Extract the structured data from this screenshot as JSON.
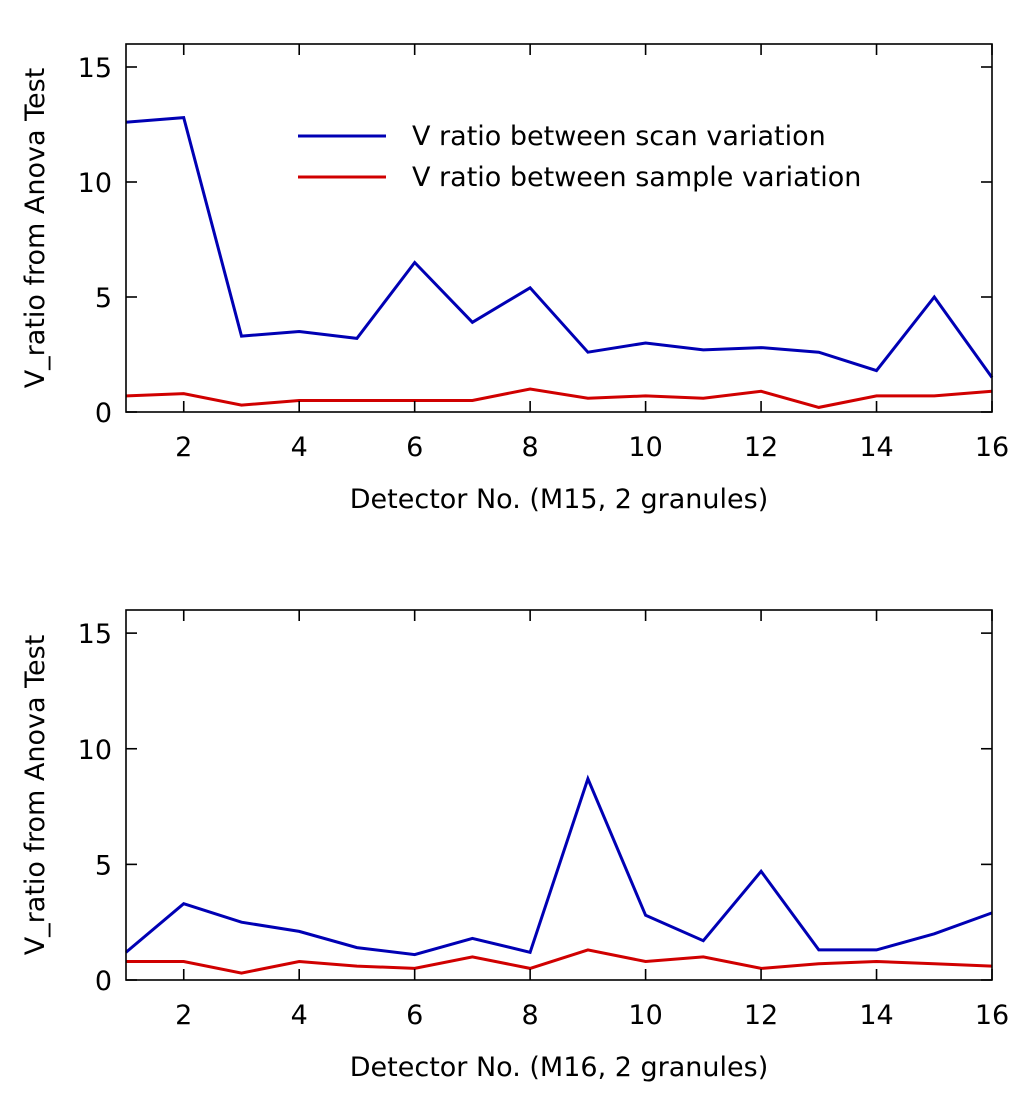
{
  "chart_data": [
    {
      "type": "line",
      "xlabel": "Detector No. (M15, 2 granules)",
      "ylabel": "V_ratio from Anova Test",
      "xlim": [
        1,
        16
      ],
      "ylim": [
        0,
        16
      ],
      "xticks": [
        2,
        4,
        6,
        8,
        10,
        12,
        14,
        16
      ],
      "yticks": [
        0,
        5,
        10,
        15
      ],
      "legend": "top-right",
      "x": [
        1,
        2,
        3,
        4,
        5,
        6,
        7,
        8,
        9,
        10,
        11,
        12,
        13,
        14,
        15,
        16
      ],
      "series": [
        {
          "name": "V ratio between scan variation",
          "color": "#0000b4",
          "values": [
            12.6,
            12.8,
            3.3,
            3.5,
            3.2,
            6.5,
            3.9,
            5.4,
            2.6,
            3.0,
            2.7,
            2.8,
            2.6,
            1.8,
            5.0,
            1.5
          ]
        },
        {
          "name": "V ratio between sample variation",
          "color": "#d00000",
          "values": [
            0.7,
            0.8,
            0.3,
            0.5,
            0.5,
            0.5,
            0.5,
            1.0,
            0.6,
            0.7,
            0.6,
            0.9,
            0.2,
            0.7,
            0.7,
            0.9
          ]
        }
      ]
    },
    {
      "type": "line",
      "xlabel": "Detector No. (M16, 2 granules)",
      "ylabel": "V_ratio from Anova Test",
      "xlim": [
        1,
        16
      ],
      "ylim": [
        0,
        16
      ],
      "xticks": [
        2,
        4,
        6,
        8,
        10,
        12,
        14,
        16
      ],
      "yticks": [
        0,
        5,
        10,
        15
      ],
      "x": [
        1,
        2,
        3,
        4,
        5,
        6,
        7,
        8,
        9,
        10,
        11,
        12,
        13,
        14,
        15,
        16
      ],
      "series": [
        {
          "name": "V ratio between scan variation",
          "color": "#0000b4",
          "values": [
            1.2,
            3.3,
            2.5,
            2.1,
            1.4,
            1.1,
            1.8,
            1.2,
            8.7,
            2.8,
            1.7,
            4.7,
            1.3,
            1.3,
            2.0,
            2.9
          ]
        },
        {
          "name": "V ratio between sample variation",
          "color": "#d00000",
          "values": [
            0.8,
            0.8,
            0.3,
            0.8,
            0.6,
            0.5,
            1.0,
            0.5,
            1.3,
            0.8,
            1.0,
            0.5,
            0.7,
            0.8,
            0.7,
            0.6
          ]
        }
      ]
    }
  ]
}
